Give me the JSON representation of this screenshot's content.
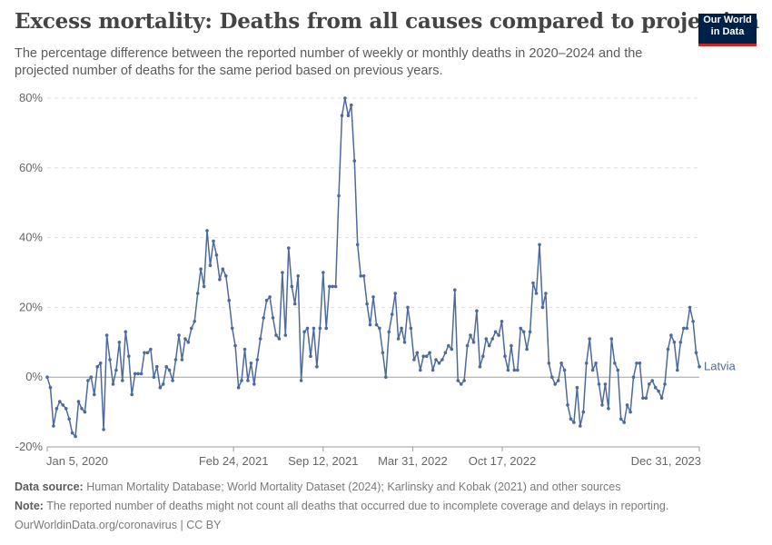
{
  "header": {
    "title": "Excess mortality: Deaths from all causes compared to projection",
    "subtitle": "The percentage difference between the reported number of weekly or monthly deaths in 2020–2024 and the projected number of deaths for the same period based on previous years.",
    "logo_line1": "Our World",
    "logo_line2": "in Data"
  },
  "footer": {
    "source_label": "Data source:",
    "source_text": "Human Mortality Database; World Mortality Dataset (2024); Karlinsky and Kobak (2021) and other sources",
    "note_label": "Note:",
    "note_text": "The reported number of deaths might not count all deaths that occurred due to incomplete coverage and delays in reporting.",
    "credit": "OurWorldinData.org/coronavirus | CC BY"
  },
  "colors": {
    "series": "#4c6a9c",
    "grid": "#dddddd",
    "zero_line": "#a0a0a0"
  },
  "chart_data": {
    "type": "line",
    "title": "Excess mortality: Deaths from all causes compared to projection",
    "ylim": [
      -20,
      80
    ],
    "y_ticks": [
      -20,
      0,
      20,
      40,
      60,
      80
    ],
    "y_tick_labels": [
      "-20%",
      "0%",
      "20%",
      "40%",
      "60%",
      "80%"
    ],
    "x_range": [
      "2020-01-05",
      "2023-12-31"
    ],
    "x_ticks": [
      "2020-01-05",
      "2021-02-24",
      "2021-09-12",
      "2022-03-31",
      "2022-10-17",
      "2023-12-31"
    ],
    "x_tick_labels": [
      "Jan 5, 2020",
      "Feb 24, 2021",
      "Sep 12, 2021",
      "Mar 31, 2022",
      "Oct 17, 2022",
      "Dec 31, 2023"
    ],
    "grid": "horizontal dashed",
    "series": [
      {
        "name": "Latvia",
        "x": [
          "2020-01-05",
          "2020-01-12",
          "2020-01-19",
          "2020-01-26",
          "2020-02-02",
          "2020-02-09",
          "2020-02-16",
          "2020-02-23",
          "2020-03-01",
          "2020-03-08",
          "2020-03-15",
          "2020-03-22",
          "2020-03-29",
          "2020-04-05",
          "2020-04-12",
          "2020-04-19",
          "2020-04-26",
          "2020-05-03",
          "2020-05-10",
          "2020-05-17",
          "2020-05-24",
          "2020-05-31",
          "2020-06-07",
          "2020-06-14",
          "2020-06-21",
          "2020-06-28",
          "2020-07-05",
          "2020-07-12",
          "2020-07-19",
          "2020-07-26",
          "2020-08-02",
          "2020-08-09",
          "2020-08-16",
          "2020-08-23",
          "2020-08-30",
          "2020-09-06",
          "2020-09-13",
          "2020-09-20",
          "2020-09-27",
          "2020-10-04",
          "2020-10-11",
          "2020-10-18",
          "2020-10-25",
          "2020-11-01",
          "2020-11-08",
          "2020-11-15",
          "2020-11-22",
          "2020-11-29",
          "2020-12-06",
          "2020-12-13",
          "2020-12-20",
          "2020-12-27",
          "2021-01-03",
          "2021-01-10",
          "2021-01-17",
          "2021-01-24",
          "2021-01-31",
          "2021-02-07",
          "2021-02-14",
          "2021-02-21",
          "2021-02-28",
          "2021-03-07",
          "2021-03-14",
          "2021-03-21",
          "2021-03-28",
          "2021-04-04",
          "2021-04-11",
          "2021-04-18",
          "2021-04-25",
          "2021-05-02",
          "2021-05-09",
          "2021-05-16",
          "2021-05-23",
          "2021-05-30",
          "2021-06-06",
          "2021-06-13",
          "2021-06-20",
          "2021-06-27",
          "2021-07-04",
          "2021-07-11",
          "2021-07-18",
          "2021-07-25",
          "2021-08-01",
          "2021-08-08",
          "2021-08-15",
          "2021-08-22",
          "2021-08-29",
          "2021-09-05",
          "2021-09-12",
          "2021-09-19",
          "2021-09-26",
          "2021-10-03",
          "2021-10-10",
          "2021-10-17",
          "2021-10-24",
          "2021-10-31",
          "2021-11-07",
          "2021-11-14",
          "2021-11-21",
          "2021-11-28",
          "2021-12-05",
          "2021-12-12",
          "2021-12-19",
          "2021-12-26",
          "2022-01-02",
          "2022-01-09",
          "2022-01-16",
          "2022-01-23",
          "2022-01-30",
          "2022-02-06",
          "2022-02-13",
          "2022-02-20",
          "2022-02-27",
          "2022-03-06",
          "2022-03-13",
          "2022-03-20",
          "2022-03-27",
          "2022-04-03",
          "2022-04-10",
          "2022-04-17",
          "2022-04-24",
          "2022-05-01",
          "2022-05-08",
          "2022-05-15",
          "2022-05-22",
          "2022-05-29",
          "2022-06-05",
          "2022-06-12",
          "2022-06-19",
          "2022-06-26",
          "2022-07-03",
          "2022-07-10",
          "2022-07-17",
          "2022-07-24",
          "2022-07-31",
          "2022-08-07",
          "2022-08-14",
          "2022-08-21",
          "2022-08-28",
          "2022-09-04",
          "2022-09-11",
          "2022-09-18",
          "2022-09-25",
          "2022-10-02",
          "2022-10-09",
          "2022-10-16",
          "2022-10-23",
          "2022-10-30",
          "2022-11-06",
          "2022-11-13",
          "2022-11-20",
          "2022-11-27",
          "2022-12-04",
          "2022-12-11",
          "2022-12-18",
          "2022-12-25",
          "2023-01-01",
          "2023-01-08",
          "2023-01-15",
          "2023-01-22",
          "2023-01-29",
          "2023-02-05",
          "2023-02-12",
          "2023-02-19",
          "2023-02-26",
          "2023-03-05",
          "2023-03-12",
          "2023-03-19",
          "2023-03-26",
          "2023-04-02",
          "2023-04-09",
          "2023-04-16",
          "2023-04-23",
          "2023-04-30",
          "2023-05-07",
          "2023-05-14",
          "2023-05-21",
          "2023-05-28",
          "2023-06-04",
          "2023-06-11",
          "2023-06-18",
          "2023-06-25",
          "2023-07-02",
          "2023-07-09",
          "2023-07-16",
          "2023-07-23",
          "2023-07-30",
          "2023-08-06",
          "2023-08-13",
          "2023-08-20",
          "2023-08-27",
          "2023-09-03",
          "2023-09-10",
          "2023-09-17",
          "2023-09-24",
          "2023-10-01",
          "2023-10-08",
          "2023-10-15",
          "2023-10-22",
          "2023-10-29",
          "2023-11-05",
          "2023-11-12",
          "2023-11-19",
          "2023-11-26",
          "2023-12-03",
          "2023-12-10",
          "2023-12-17",
          "2023-12-24",
          "2023-12-31"
        ],
        "values": [
          0,
          -3,
          -14,
          -9,
          -7,
          -8,
          -9,
          -12,
          -16,
          -17,
          -7,
          -9,
          -10,
          -1,
          0,
          -5,
          3,
          4,
          -15,
          12,
          5,
          -2,
          2,
          10,
          -1,
          13,
          6,
          -5,
          1,
          1,
          1,
          7,
          7,
          8,
          0,
          3,
          -3,
          -2,
          3,
          2,
          -1,
          5,
          12,
          5,
          11,
          10,
          14,
          16,
          24,
          31,
          26,
          42,
          32,
          39,
          35,
          28,
          31,
          29,
          22,
          14,
          9,
          -3,
          -1,
          8,
          -1,
          4,
          -2,
          5,
          11,
          17,
          22,
          23,
          17,
          12,
          11,
          30,
          12,
          37,
          26,
          21,
          29,
          -1,
          13,
          14,
          6,
          14,
          3,
          14,
          30,
          14,
          26,
          26,
          26,
          52,
          75,
          80,
          75,
          78,
          62,
          38,
          29,
          29,
          21,
          15,
          23,
          15,
          14,
          7,
          0,
          13,
          18,
          24,
          11,
          14,
          10,
          20,
          14,
          5,
          7,
          2,
          6,
          6,
          7,
          2,
          5,
          4,
          5,
          7,
          9,
          8,
          25,
          -1,
          -2,
          -1,
          9,
          12,
          10,
          19,
          3,
          6,
          11,
          9,
          11,
          13,
          12,
          16,
          6,
          2,
          9,
          2,
          2,
          14,
          13,
          8,
          13,
          27,
          24,
          38,
          20,
          24,
          4,
          0,
          -2,
          -1,
          4,
          2,
          -8,
          -12,
          -13,
          -3,
          -14,
          -10,
          4,
          11,
          2,
          4,
          -2,
          -8,
          -2,
          -9,
          11,
          4,
          2,
          -12,
          -13,
          -8,
          -10,
          0,
          4,
          4,
          -6,
          -6,
          -2,
          -1,
          -3,
          -4,
          -6,
          -2,
          8,
          12,
          10,
          2,
          10,
          14,
          14,
          20,
          16,
          7,
          3
        ]
      }
    ]
  }
}
